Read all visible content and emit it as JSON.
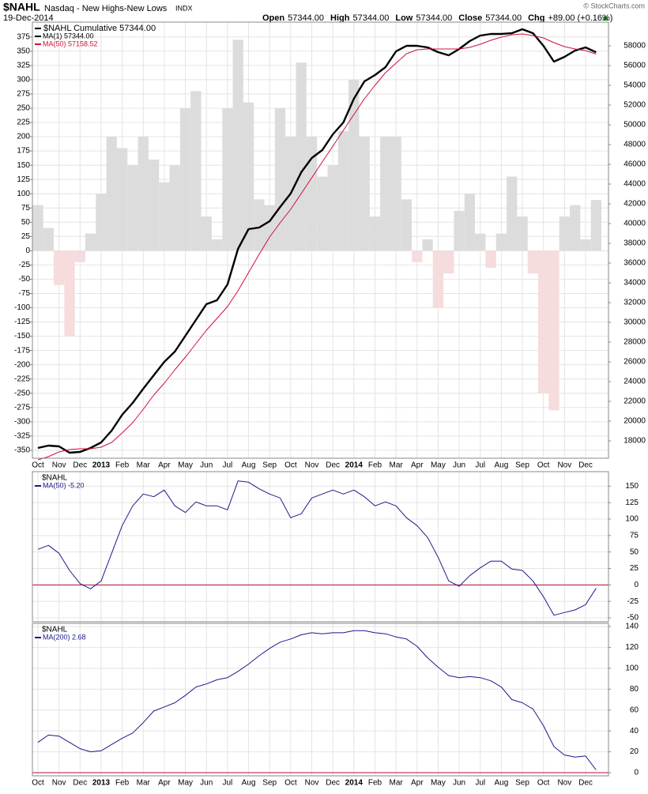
{
  "header": {
    "symbol": "$NAHL",
    "name": "Nasdaq - New Highs-New Lows",
    "exchange": "INDX",
    "date": "19-Dec-2014",
    "quote": [
      {
        "label": "Open",
        "value": "57344.00"
      },
      {
        "label": "High",
        "value": "57344.00"
      },
      {
        "label": "Low",
        "value": "57344.00"
      },
      {
        "label": "Close",
        "value": "57344.00"
      },
      {
        "label": "Chg",
        "value": "+89.00 (+0.16%)"
      }
    ],
    "credit": "© StockCharts.com"
  },
  "chart_data": [
    {
      "type": "line",
      "legend_title": "$NAHL Cumulative 57344.00",
      "legend_title_color": "#000000",
      "categories": [
        "Oct",
        null,
        "Nov",
        null,
        "Dec",
        null,
        "2013",
        null,
        "Feb",
        null,
        "Mar",
        null,
        "Apr",
        null,
        "May",
        null,
        "Jun",
        null,
        "Jul",
        null,
        "Aug",
        null,
        "Sep",
        null,
        "Oct",
        null,
        "Nov",
        null,
        "Dec",
        null,
        "2014",
        null,
        "Feb",
        null,
        "Mar",
        null,
        "Apr",
        null,
        "May",
        null,
        "Jun",
        null,
        "Jul",
        null,
        "Aug",
        null,
        "Sep",
        null,
        "Oct",
        null,
        "Nov",
        null,
        "Dec",
        null
      ],
      "ylim": [
        -364,
        401
      ],
      "yticks": [
        -350,
        -325,
        -300,
        -275,
        -250,
        -225,
        -200,
        -175,
        -150,
        -125,
        -100,
        -75,
        -50,
        -25,
        0,
        25,
        50,
        75,
        100,
        125,
        150,
        175,
        200,
        225,
        250,
        275,
        300,
        325,
        350,
        375
      ],
      "y2lim": [
        16240,
        60400
      ],
      "y2ticks": [
        18000,
        20000,
        22000,
        24000,
        26000,
        28000,
        30000,
        32000,
        34000,
        36000,
        38000,
        40000,
        42000,
        44000,
        46000,
        48000,
        50000,
        52000,
        54000,
        56000,
        58000
      ],
      "grid": true,
      "histogram": {
        "color": "#dcdcdc",
        "negative_color": "#f6dcdc",
        "values": [
          80,
          40,
          -60,
          -150,
          -20,
          30,
          100,
          200,
          180,
          150,
          200,
          160,
          120,
          150,
          250,
          280,
          60,
          20,
          250,
          370,
          260,
          90,
          80,
          250,
          200,
          330,
          200,
          130,
          150,
          210,
          300,
          200,
          60,
          200,
          200,
          90,
          -20,
          20,
          -100,
          -40,
          70,
          100,
          30,
          -30,
          30,
          130,
          60,
          -40,
          -250,
          -280,
          60,
          80,
          20,
          89
        ]
      },
      "series": [
        {
          "name": "MA(1) 57344.00",
          "color": "#000000",
          "axis": "y2",
          "line_width": 2.4,
          "values": [
            17280,
            17520,
            17440,
            16800,
            16880,
            17280,
            17840,
            19040,
            20640,
            21840,
            23280,
            24640,
            26000,
            27040,
            28640,
            30240,
            31840,
            32240,
            33840,
            37440,
            39440,
            39600,
            40240,
            41680,
            43040,
            45200,
            46640,
            47440,
            49040,
            50240,
            52640,
            54400,
            55040,
            55840,
            57440,
            58000,
            58000,
            57840,
            57360,
            57040,
            57680,
            58480,
            59040,
            59200,
            59200,
            59280,
            59680,
            59280,
            58000,
            56400,
            56880,
            57520,
            57840,
            57344
          ]
        },
        {
          "name": "MA(50) 57158.52",
          "color": "#d0103a",
          "axis": "y2",
          "line_width": 1,
          "values": [
            16080,
            16400,
            16880,
            17120,
            17200,
            17200,
            17360,
            17840,
            18800,
            19840,
            21200,
            22640,
            23840,
            25200,
            26480,
            27840,
            29200,
            30400,
            31600,
            33200,
            35040,
            36880,
            38640,
            40080,
            41440,
            43040,
            44640,
            46240,
            47840,
            49440,
            51040,
            52640,
            54000,
            55280,
            56240,
            57200,
            57600,
            57680,
            57680,
            57680,
            57680,
            57840,
            58160,
            58560,
            58880,
            59120,
            59200,
            59040,
            58800,
            58320,
            57920,
            57680,
            57520,
            57158.52
          ]
        }
      ]
    },
    {
      "type": "line",
      "legend_title": "$NAHL",
      "yaxis_side": "right",
      "ylim": [
        -56,
        172
      ],
      "yticks": [
        -50,
        -25,
        0,
        25,
        50,
        75,
        100,
        125,
        150
      ],
      "grid": true,
      "reference_line": 0,
      "reference_color": "#b0103a",
      "series": [
        {
          "name": "MA(50) -5.20",
          "color": "#1a1a8c",
          "line_width": 1,
          "values": [
            54,
            60,
            48,
            22,
            2,
            -6,
            6,
            48,
            90,
            120,
            138,
            134,
            144,
            120,
            110,
            126,
            120,
            120,
            114,
            158,
            156,
            146,
            138,
            132,
            102,
            108,
            132,
            138,
            144,
            138,
            144,
            134,
            120,
            126,
            120,
            102,
            90,
            72,
            42,
            6,
            -2,
            14,
            26,
            36,
            36,
            24,
            22,
            6,
            -18,
            -46,
            -42,
            -38,
            -30,
            -5.2
          ]
        }
      ]
    },
    {
      "type": "line",
      "legend_title": "$NAHL",
      "yaxis_side": "right",
      "categories": [
        "Oct",
        null,
        "Nov",
        null,
        "Dec",
        null,
        "2013",
        null,
        "Feb",
        null,
        "Mar",
        null,
        "Apr",
        null,
        "May",
        null,
        "Jun",
        null,
        "Jul",
        null,
        "Aug",
        null,
        "Sep",
        null,
        "Oct",
        null,
        "Nov",
        null,
        "Dec",
        null,
        "2014",
        null,
        "Feb",
        null,
        "Mar",
        null,
        "Apr",
        null,
        "May",
        null,
        "Jun",
        null,
        "Jul",
        null,
        "Aug",
        null,
        "Sep",
        null,
        "Oct",
        null,
        "Nov",
        null,
        "Dec",
        null
      ],
      "ylim": [
        -3,
        143
      ],
      "yticks": [
        0,
        20,
        40,
        60,
        80,
        100,
        120,
        140
      ],
      "grid": true,
      "reference_line": 0,
      "reference_color": "#b0103a",
      "series": [
        {
          "name": "MA(200) 2.68",
          "color": "#1a1a8c",
          "line_width": 1,
          "values": [
            29,
            36,
            35,
            29,
            23,
            20,
            21,
            27,
            33,
            38,
            48,
            59,
            63,
            67,
            74,
            82,
            85,
            89,
            91,
            97,
            104,
            112,
            119,
            125,
            128,
            132,
            134,
            133,
            134,
            134,
            136,
            136,
            134,
            133,
            130,
            128,
            121,
            110,
            101,
            93,
            91,
            92,
            91,
            88,
            82,
            70,
            67,
            61,
            45,
            25,
            17,
            15,
            16,
            2.68
          ]
        }
      ]
    }
  ]
}
